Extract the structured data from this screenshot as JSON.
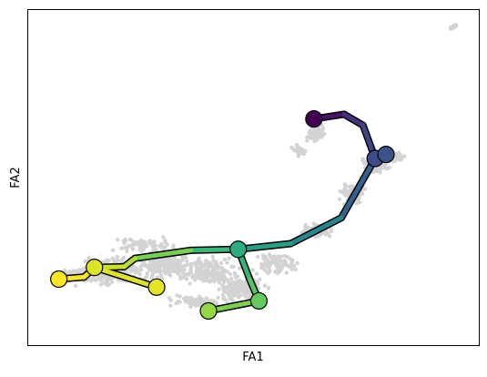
{
  "chart_data": {
    "type": "scatter",
    "title": "",
    "xlabel": "FA1",
    "ylabel": "FA2",
    "xticks": [],
    "yticks": [],
    "xlim": [
      0,
      100
    ],
    "ylim": [
      0,
      100
    ],
    "grid": false,
    "legend": "none",
    "background_points_color": "#d3d3d3",
    "colormap": "viridis",
    "nodes": [
      {
        "id": 0,
        "x": 63.4,
        "y": 67.5,
        "t": 0.0
      },
      {
        "id": 1,
        "x": 70.1,
        "y": 68.9,
        "t": 0.1
      },
      {
        "id": 2,
        "x": 74.3,
        "y": 65.6,
        "t": 0.17
      },
      {
        "id": 3,
        "x": 77.0,
        "y": 55.7,
        "t": 0.23
      },
      {
        "id": 4,
        "x": 79.4,
        "y": 56.9,
        "t": 0.26
      },
      {
        "id": 5,
        "x": 69.5,
        "y": 38.0,
        "t": 0.4
      },
      {
        "id": 6,
        "x": 58.3,
        "y": 30.3,
        "t": 0.52
      },
      {
        "id": 7,
        "x": 46.6,
        "y": 28.6,
        "t": 0.62
      },
      {
        "id": 8,
        "x": 49.2,
        "y": 19.5,
        "t": 0.7
      },
      {
        "id": 9,
        "x": 51.2,
        "y": 13.2,
        "t": 0.76
      },
      {
        "id": 10,
        "x": 40.0,
        "y": 10.2,
        "t": 0.84
      },
      {
        "id": 11,
        "x": 36.1,
        "y": 28.3,
        "t": 0.72
      },
      {
        "id": 12,
        "x": 23.7,
        "y": 25.9,
        "t": 0.87
      },
      {
        "id": 13,
        "x": 21.3,
        "y": 23.4,
        "t": 0.89
      },
      {
        "id": 14,
        "x": 14.7,
        "y": 23.2,
        "t": 0.95
      },
      {
        "id": 15,
        "x": 28.5,
        "y": 17.3,
        "t": 0.96
      },
      {
        "id": 16,
        "x": 12.4,
        "y": 20.3,
        "t": 0.98
      },
      {
        "id": 17,
        "x": 6.8,
        "y": 19.7,
        "t": 1.0
      }
    ],
    "edges": [
      [
        0,
        1
      ],
      [
        1,
        2
      ],
      [
        2,
        3
      ],
      [
        3,
        4
      ],
      [
        3,
        5
      ],
      [
        5,
        6
      ],
      [
        6,
        7
      ],
      [
        7,
        8
      ],
      [
        8,
        9
      ],
      [
        9,
        10
      ],
      [
        7,
        11
      ],
      [
        11,
        12
      ],
      [
        12,
        13
      ],
      [
        13,
        14
      ],
      [
        14,
        15
      ],
      [
        14,
        16
      ],
      [
        16,
        17
      ]
    ],
    "marker_nodes": [
      0,
      3,
      4,
      7,
      9,
      10,
      14,
      15,
      17
    ]
  }
}
